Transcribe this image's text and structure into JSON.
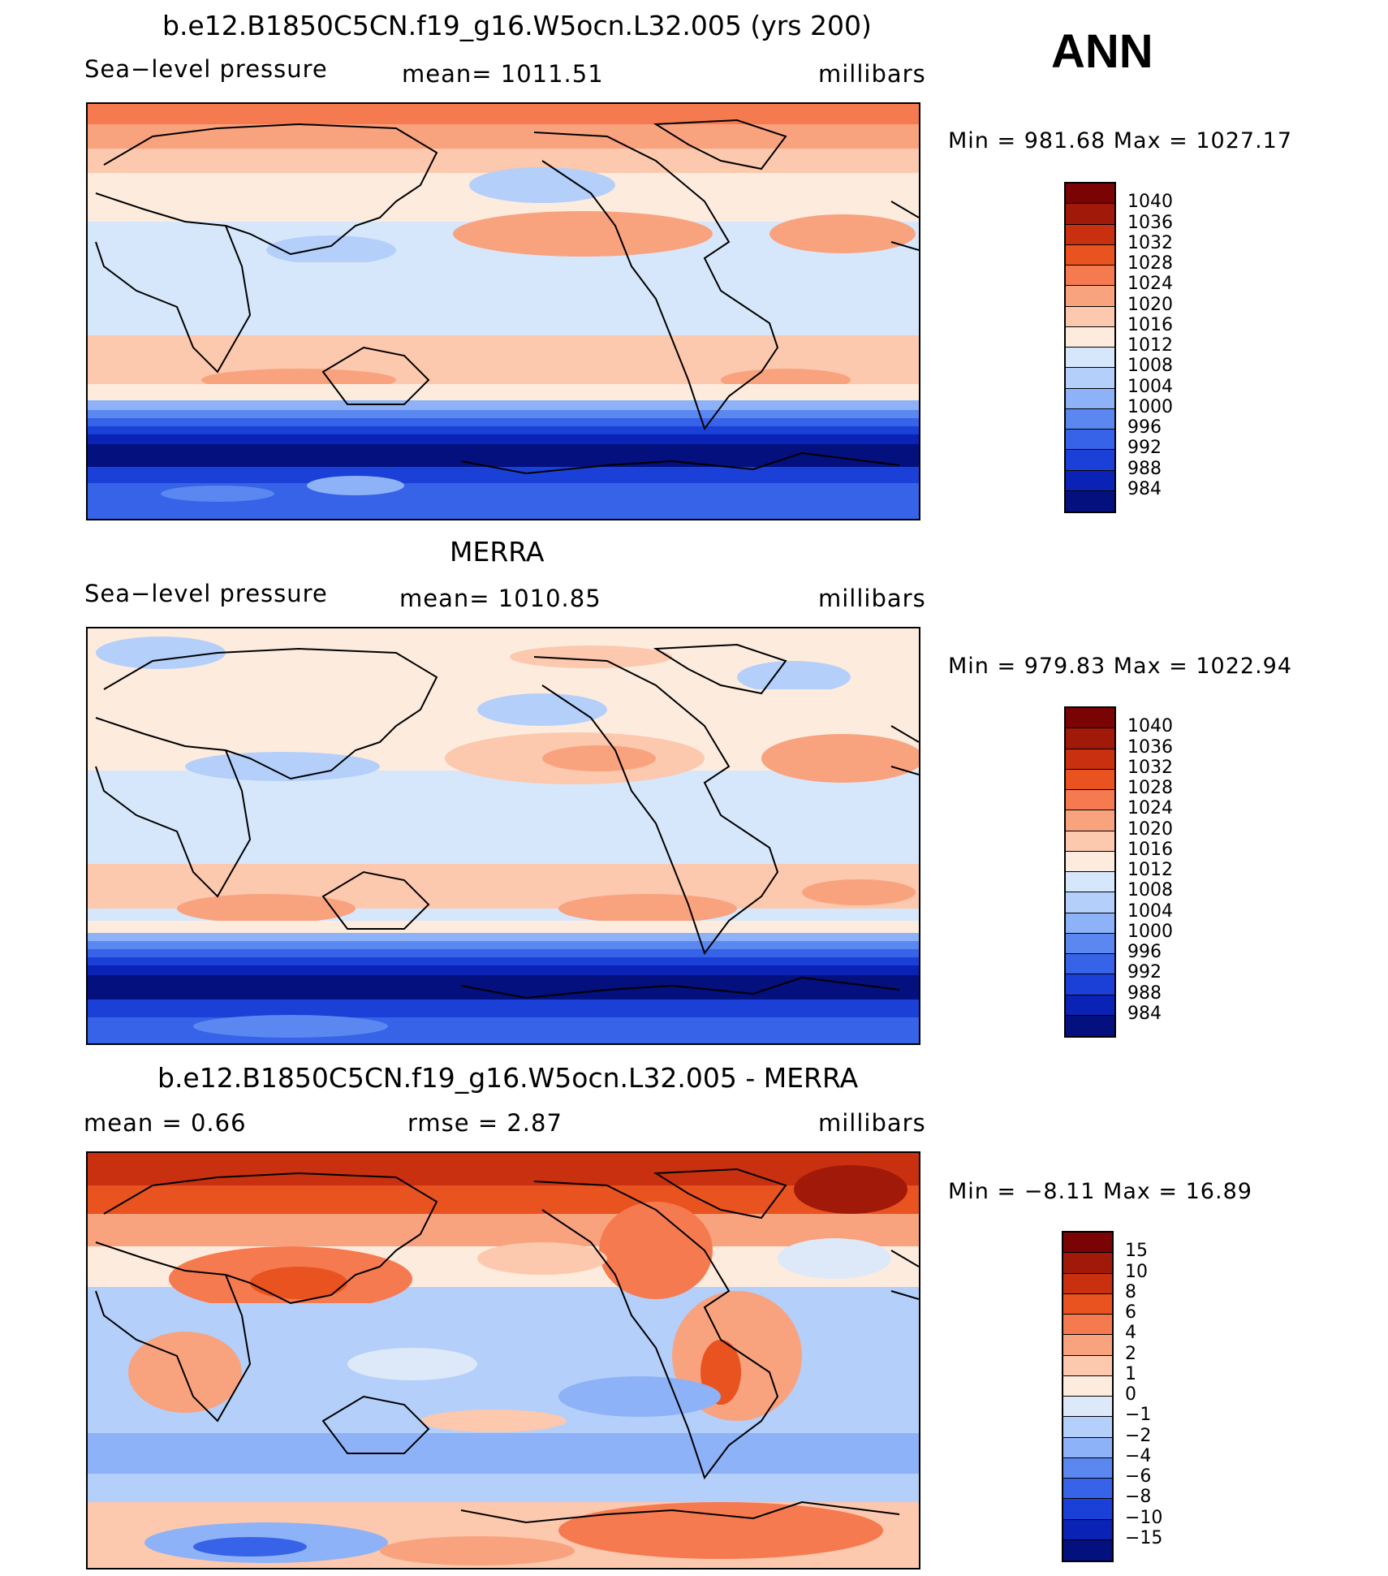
{
  "season": "ANN",
  "chart_data": [
    {
      "type": "heatmap",
      "title": "b.e12.B1850C5CN.f19_g16.W5ocn.L32.005 (yrs 200)",
      "left_label": "Sea−level pressure",
      "center_label": "mean=  1011.51",
      "units": "millibars",
      "minmax": "Min  =  981.68  Max  =  1027.17",
      "mean": 1011.51,
      "min": 981.68,
      "max": 1027.17,
      "colorbar": {
        "levels": [
          "1040",
          "1036",
          "1032",
          "1028",
          "1024",
          "1020",
          "1016",
          "1012",
          "1008",
          "1004",
          "1000",
          "996",
          "992",
          "988",
          "984"
        ],
        "colors": [
          "#7a0403",
          "#a11a09",
          "#c9300f",
          "#e9531f",
          "#f67a4f",
          "#f9a27e",
          "#fcc8ae",
          "#fdebde",
          "#d6e7fb",
          "#b3cffa",
          "#8eb2f7",
          "#5a88f0",
          "#3663e8",
          "#1b40d8",
          "#0a22b5",
          "#03107d"
        ]
      }
    },
    {
      "type": "heatmap",
      "title": "MERRA",
      "left_label": "Sea−level pressure",
      "center_label": "mean=  1010.85",
      "units": "millibars",
      "minmax": "Min  =  979.83  Max  =  1022.94",
      "mean": 1010.85,
      "min": 979.83,
      "max": 1022.94,
      "colorbar": {
        "levels": [
          "1040",
          "1036",
          "1032",
          "1028",
          "1024",
          "1020",
          "1016",
          "1012",
          "1008",
          "1004",
          "1000",
          "996",
          "992",
          "988",
          "984"
        ],
        "colors": [
          "#7a0403",
          "#a11a09",
          "#c9300f",
          "#e9531f",
          "#f67a4f",
          "#f9a27e",
          "#fcc8ae",
          "#fdebde",
          "#d6e7fb",
          "#b3cffa",
          "#8eb2f7",
          "#5a88f0",
          "#3663e8",
          "#1b40d8",
          "#0a22b5",
          "#03107d"
        ]
      }
    },
    {
      "type": "heatmap",
      "title": "b.e12.B1850C5CN.f19_g16.W5ocn.L32.005 - MERRA",
      "left_label": "mean  =      0.66",
      "center_label": "rmse  =      2.87",
      "units": "millibars",
      "minmax": "Min  =    −8.11  Max  =    16.89",
      "mean": 0.66,
      "rmse": 2.87,
      "min": -8.11,
      "max": 16.89,
      "colorbar": {
        "levels": [
          "15",
          "10",
          "8",
          "6",
          "4",
          "2",
          "1",
          "0",
          "−1",
          "−2",
          "−4",
          "−6",
          "−8",
          "−10",
          "−15"
        ],
        "colors": [
          "#7a0403",
          "#a11a09",
          "#c9300f",
          "#e9531f",
          "#f67a4f",
          "#f9a27e",
          "#fcc8ae",
          "#fdebde",
          "#dde9f8",
          "#b3cffa",
          "#8eb2f7",
          "#5a88f0",
          "#3663e8",
          "#1b40d8",
          "#0a22b5",
          "#03107d"
        ]
      }
    }
  ]
}
